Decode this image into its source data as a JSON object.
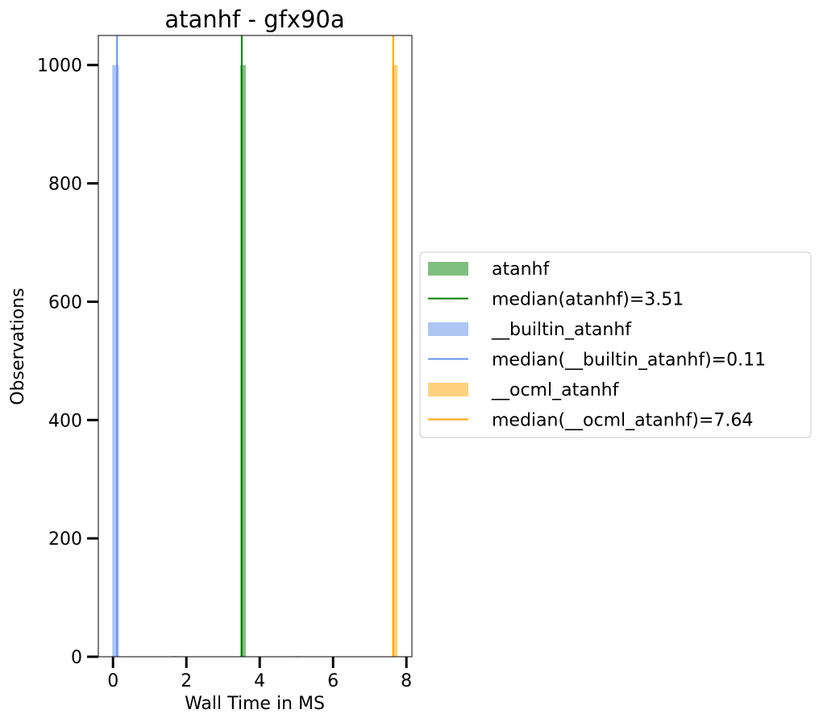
{
  "chart_data": {
    "type": "histogram",
    "title": "atanhf - gfx90a",
    "xlabel": "Wall Time in MS",
    "ylabel": "Observations",
    "xlim": [
      -0.4,
      8.15
    ],
    "ylim": [
      0,
      1050
    ],
    "xticks": [
      0,
      2,
      4,
      6,
      8
    ],
    "yticks": [
      0,
      200,
      400,
      600,
      800,
      1000
    ],
    "legend_position": "outside-right",
    "series": [
      {
        "name": "atanhf",
        "color": "#2ca02c",
        "fill_color": "#7fbf7f",
        "bins": [
          {
            "x0": 3.47,
            "x1": 3.62,
            "count": 1000
          }
        ],
        "median": 3.51,
        "median_label": "median(atanhf)=3.51",
        "median_color": "#008000"
      },
      {
        "name": "__builtin_atanhf",
        "color": "#6495ed",
        "fill_color": "#adc6f2",
        "bins": [
          {
            "x0": -0.02,
            "x1": 0.16,
            "count": 1000
          },
          {
            "x0": 1.6,
            "x1": 1.78,
            "count": 1
          }
        ],
        "median": 0.11,
        "median_label": "median(__builtin_atanhf)=0.11",
        "median_color": "#6495ed"
      },
      {
        "name": "__ocml_atanhf",
        "color": "#ffa500",
        "fill_color": "#ffd27f",
        "bins": [
          {
            "x0": 7.61,
            "x1": 7.76,
            "count": 1000
          },
          {
            "x0": 4.95,
            "x1": 5.1,
            "count": 1
          }
        ],
        "median": 7.64,
        "median_label": "median(__ocml_atanhf)=7.64",
        "median_color": "#ffa500"
      }
    ]
  }
}
